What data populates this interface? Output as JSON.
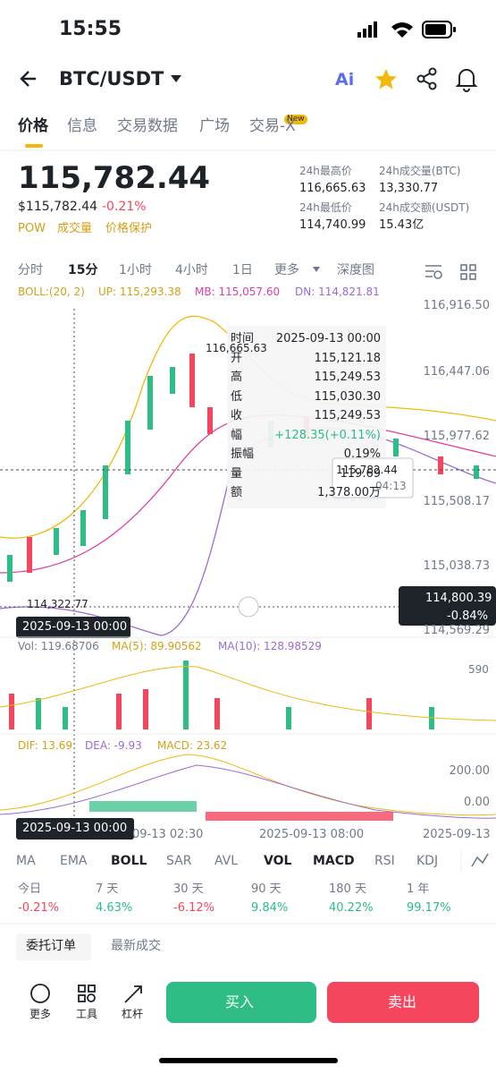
{
  "status": {
    "time": "15:55"
  },
  "header": {
    "title": "BTC/USDT",
    "ai": "Ai"
  },
  "tabs": {
    "items": [
      "价格",
      "信息",
      "交易数据",
      "广场",
      "交易-X"
    ],
    "badge": "New"
  },
  "price": {
    "last": "115,782.44",
    "fiat": "$115,782.44",
    "change": "-0.21%",
    "tags": [
      "POW",
      "成交量",
      "价格保护"
    ]
  },
  "stats": [
    {
      "label": "24h最高价",
      "value": "116,665.63"
    },
    {
      "label": "24h成交量(BTC)",
      "value": "13,330.77"
    },
    {
      "label": "24h最低价",
      "value": "114,740.99"
    },
    {
      "label": "24h成交额(USDT)",
      "value": "15.43亿"
    }
  ],
  "intervals": [
    "分时",
    "15分",
    "1小时",
    "4小时",
    "1日",
    "更多",
    "深度图"
  ],
  "boll": {
    "name": "BOLL:(20, 2)",
    "up": "UP: 115,293.38",
    "mb": "MB: 115,057.60",
    "dn": "DN: 114,821.81"
  },
  "price_axis": [
    "116,916.50",
    "116,447.06",
    "115,977.62",
    "115,508.17",
    "115,038.73",
    "114,569.29"
  ],
  "chart": {
    "high": "116,665.63",
    "low": "114,322.77",
    "cross_time": "2025-09-13 00:00",
    "cross_price": "114,800.39",
    "cross_change": "-0.84%",
    "last_tag": "115,782.44",
    "last_time": "04:13"
  },
  "tooltip": [
    {
      "label": "时间",
      "value": "2025-09-13 00:00"
    },
    {
      "label": "开",
      "value": "115,121.18"
    },
    {
      "label": "高",
      "value": "115,249.53"
    },
    {
      "label": "低",
      "value": "115,030.30"
    },
    {
      "label": "收",
      "value": "115,249.53"
    },
    {
      "label": "幅",
      "value": "+128.35(+0.11%)"
    },
    {
      "label": "振幅",
      "value": "0.19%"
    },
    {
      "label": "量",
      "value": "119.69"
    },
    {
      "label": "额",
      "value": "1,378.00万"
    }
  ],
  "volume": {
    "vol": "Vol: 119.68706",
    "ma5": "MA(5): 89.90562",
    "ma10": "MA(10): 128.98529",
    "axis": "590"
  },
  "macd": {
    "dif": "DIF: 13.69",
    "dea": "DEA: -9.93",
    "macd": "MACD: 23.62",
    "axis": [
      "200.00",
      "0.00"
    ]
  },
  "time_axis": [
    "09-13 02:30",
    "2025-09-13 08:00",
    "2025-09-13"
  ],
  "indicators": [
    "MA",
    "EMA",
    "BOLL",
    "SAR",
    "AVL",
    "VOL",
    "MACD",
    "RSI",
    "KDJ"
  ],
  "performance": [
    {
      "label": "今日",
      "value": "-0.21%"
    },
    {
      "label": "7 天",
      "value": "4.63%"
    },
    {
      "label": "30 天",
      "value": "-6.12%"
    },
    {
      "label": "90 天",
      "value": "9.84%"
    },
    {
      "label": "180 天",
      "value": "40.22%"
    },
    {
      "label": "1 年",
      "value": "99.17%"
    }
  ],
  "orders": [
    "委托订单",
    "最新成交"
  ],
  "toolbar": [
    "更多",
    "工具",
    "杠杆"
  ],
  "actions": {
    "buy": "买入",
    "sell": "卖出"
  }
}
